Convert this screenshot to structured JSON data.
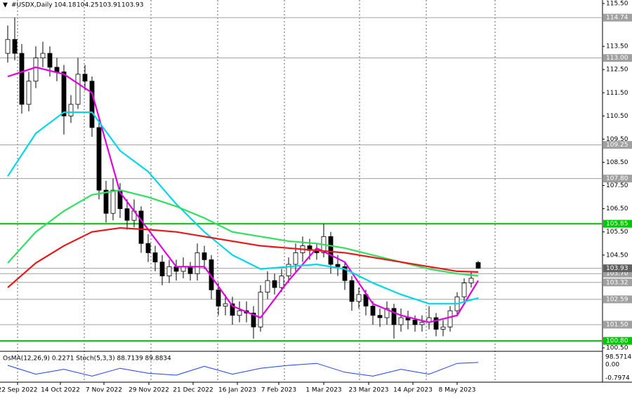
{
  "chart_data": {
    "type": "candlestick",
    "title": "#USDX,Daily",
    "open": [
      113.2,
      113.8,
      113.2,
      111.0,
      112.0,
      113.0,
      113.2,
      112.6,
      112.4,
      110.5,
      111.0,
      112.3,
      112.0,
      110.0,
      107.3,
      106.3,
      107.3,
      106.5,
      106.0,
      106.4,
      105.0,
      104.6,
      104.2,
      103.6,
      104.0,
      103.8,
      104.0,
      103.7,
      104.6,
      104.3,
      103.0,
      102.3,
      102.4,
      101.9,
      102.1,
      102.0,
      101.4,
      102.9,
      103.4,
      103.1,
      103.6,
      104.1,
      104.6,
      104.9,
      104.7,
      104.6,
      105.3,
      104.1,
      104.0,
      103.4,
      102.5,
      102.8,
      102.3,
      101.9,
      101.8,
      102.2,
      101.5,
      101.8,
      101.7,
      101.5,
      101.6,
      101.8,
      101.3,
      101.4,
      102.1,
      102.7,
      103.3,
      104.18
    ],
    "high": [
      114.4,
      114.74,
      113.6,
      112.4,
      113.5,
      113.7,
      113.5,
      113.0,
      112.7,
      111.4,
      113.0,
      112.7,
      112.2,
      110.4,
      107.7,
      107.8,
      107.6,
      106.9,
      106.9,
      106.6,
      105.4,
      104.9,
      104.5,
      104.3,
      104.3,
      104.4,
      104.2,
      105.0,
      104.9,
      104.5,
      103.3,
      102.8,
      102.7,
      102.5,
      102.5,
      102.3,
      103.2,
      103.8,
      103.7,
      103.9,
      104.4,
      105.0,
      105.3,
      105.2,
      105.0,
      105.85,
      105.5,
      104.5,
      104.2,
      103.6,
      103.1,
      103.0,
      102.5,
      102.2,
      102.5,
      102.4,
      102.2,
      102.1,
      101.9,
      101.9,
      102.3,
      102.0,
      101.7,
      102.3,
      102.9,
      103.5,
      103.8,
      104.25
    ],
    "low": [
      112.8,
      112.9,
      110.6,
      110.7,
      111.7,
      112.6,
      112.2,
      112.0,
      109.7,
      110.2,
      110.8,
      111.6,
      109.6,
      106.9,
      105.9,
      106.0,
      106.1,
      105.6,
      105.7,
      104.6,
      104.2,
      103.8,
      103.2,
      103.3,
      103.4,
      103.5,
      103.4,
      103.4,
      103.9,
      102.6,
      101.9,
      101.9,
      101.5,
      101.6,
      101.6,
      100.9,
      101.2,
      102.6,
      102.8,
      102.9,
      103.3,
      103.8,
      104.2,
      104.3,
      104.3,
      104.4,
      103.7,
      103.6,
      103.0,
      102.1,
      102.2,
      101.9,
      101.5,
      101.4,
      101.5,
      100.9,
      101.2,
      101.3,
      101.2,
      101.2,
      101.3,
      101.0,
      101.0,
      101.2,
      101.9,
      102.5,
      103.1,
      103.91
    ],
    "close": [
      113.8,
      113.2,
      111.0,
      112.0,
      113.0,
      113.2,
      112.6,
      112.4,
      110.5,
      111.0,
      112.3,
      112.0,
      110.0,
      107.3,
      106.3,
      107.3,
      106.5,
      106.0,
      106.4,
      105.0,
      104.6,
      104.2,
      103.6,
      104.0,
      103.8,
      104.0,
      103.7,
      104.6,
      104.3,
      103.0,
      102.3,
      102.4,
      101.9,
      102.1,
      102.0,
      101.4,
      102.9,
      103.4,
      103.1,
      103.6,
      104.1,
      104.6,
      104.9,
      104.7,
      104.6,
      105.3,
      104.1,
      104.0,
      103.4,
      102.5,
      102.8,
      102.3,
      101.9,
      101.8,
      102.2,
      101.5,
      101.8,
      101.7,
      101.5,
      101.6,
      101.8,
      101.3,
      101.4,
      102.1,
      102.7,
      103.3,
      103.5,
      103.93
    ],
    "xlim": [
      -1.1,
      84.7
    ],
    "xticks": [
      {
        "value": 1.4,
        "label": "22 Sep 2022"
      },
      {
        "value": 7.5,
        "label": "14 Oct 2022"
      },
      {
        "value": 13.7,
        "label": "7 Nov 2022"
      },
      {
        "value": 20.1,
        "label": "29 Nov 2022"
      },
      {
        "value": 26.4,
        "label": "21 Dec 2022"
      },
      {
        "value": 32.7,
        "label": "16 Jan 2023"
      },
      {
        "value": 38.6,
        "label": "7 Feb 2023"
      },
      {
        "value": 45,
        "label": "1 Mar 2023"
      },
      {
        "value": 51.4,
        "label": "23 Mar 2023"
      },
      {
        "value": 57.7,
        "label": "14 Apr 2023"
      },
      {
        "value": 64,
        "label": "8 May 2023"
      }
    ],
    "ylim": [
      100.38,
      115.5
    ],
    "yticks": [
      {
        "value": 115.5,
        "label": "115.50"
      },
      {
        "value": 113.5,
        "label": "113.50"
      },
      {
        "value": 112.5,
        "label": "112.50"
      },
      {
        "value": 111.5,
        "label": "111.50"
      },
      {
        "value": 110.5,
        "label": "110.50"
      },
      {
        "value": 109.5,
        "label": "109.50"
      },
      {
        "value": 108.5,
        "label": "108.50"
      },
      {
        "value": 107.5,
        "label": "107.50"
      },
      {
        "value": 106.5,
        "label": "106.50"
      },
      {
        "value": 105.5,
        "label": "105.50"
      },
      {
        "value": 104.5,
        "label": "104.50"
      },
      {
        "value": 100.5,
        "label": "100.50"
      }
    ],
    "levels": [
      {
        "value": 114.74,
        "color": "#a0a0a0"
      },
      {
        "value": 113,
        "label": "113.00",
        "color": "#a0a0a0"
      },
      {
        "value": 109.25,
        "color": "#a0a0a0"
      },
      {
        "value": 107.8,
        "label": "107.80",
        "color": "#a0a0a0"
      },
      {
        "value": 105.85,
        "color": "#00c800"
      },
      {
        "value": 103.7,
        "label": "103.70",
        "color": "#a0a0a0"
      },
      {
        "value": 103.32,
        "color": "#a0a0a0"
      },
      {
        "value": 102.59,
        "color": "#a0a0a0"
      },
      {
        "value": 101.5,
        "label": "101.50",
        "color": "#a0a0a0"
      },
      {
        "value": 100.8,
        "label": "100.80",
        "color": "#00c800"
      }
    ],
    "sample_x": [
      0,
      4,
      8,
      12,
      16,
      20,
      24,
      28,
      32,
      36,
      40,
      44,
      48,
      52,
      56,
      60,
      64,
      67
    ],
    "moving_averages": [
      {
        "color": "#e000e0",
        "values": [
          112.2,
          112.6,
          112.3,
          111.5,
          107.2,
          105.6,
          104.0,
          104.0,
          102.3,
          101.8,
          103.4,
          104.8,
          104.2,
          102.4,
          101.9,
          101.6,
          101.9,
          103.4
        ]
      },
      {
        "color": "#00d8e8",
        "values": [
          107.9,
          109.75,
          110.66,
          110.66,
          109.0,
          108.1,
          106.7,
          105.5,
          104.5,
          103.9,
          104.0,
          104.1,
          103.9,
          103.3,
          102.8,
          102.4,
          102.4,
          102.65
        ]
      },
      {
        "color": "#30e060",
        "values": [
          104.16,
          105.5,
          106.4,
          107.1,
          107.3,
          107.0,
          106.6,
          106.1,
          105.5,
          105.3,
          105.1,
          105.0,
          104.8,
          104.5,
          104.2,
          103.9,
          103.7,
          103.6
        ]
      },
      {
        "color": "#e81818",
        "values": [
          103.1,
          104.16,
          104.9,
          105.5,
          105.67,
          105.6,
          105.5,
          105.3,
          105.1,
          104.9,
          104.8,
          104.7,
          104.6,
          104.4,
          104.2,
          104.0,
          103.8,
          103.77
        ]
      }
    ],
    "indicator": {
      "title": "OsMA(12,26,9) 0.2271 Stoch(5,3,3) 88.7139 89.8834",
      "axis_labels": [
        "98.5714",
        "0.00",
        "-0.7974"
      ],
      "ylim": [
        0,
        100
      ],
      "color": "#1e3cff",
      "values": [
        75,
        30,
        55,
        20,
        60,
        35,
        25,
        70,
        30,
        60,
        75,
        85,
        40,
        20,
        55,
        30,
        85,
        89.8834
      ]
    }
  }
}
